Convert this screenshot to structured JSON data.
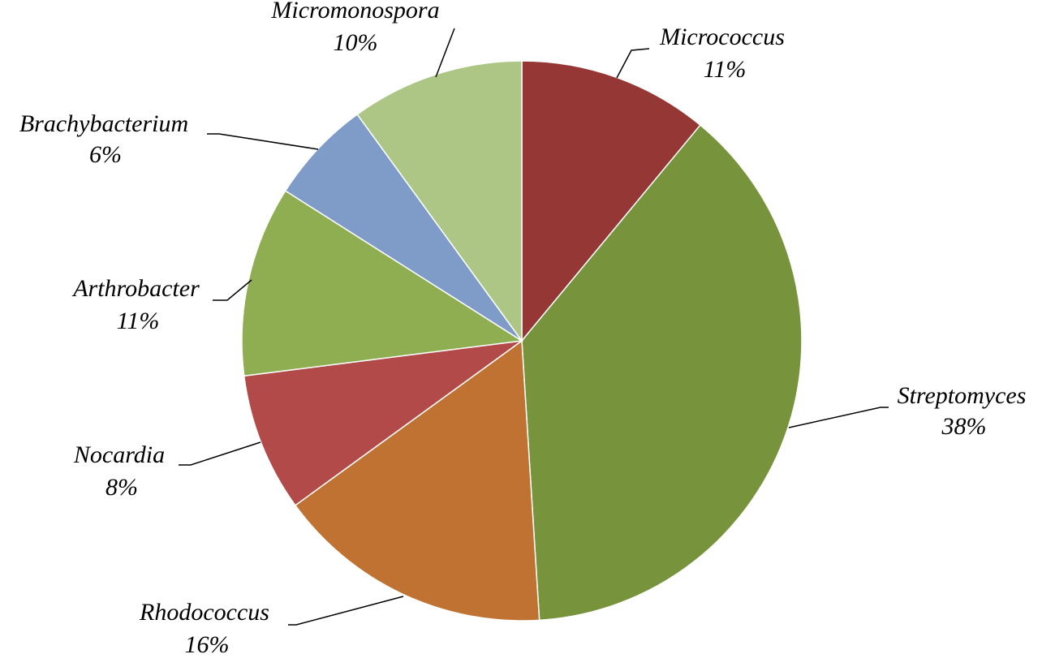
{
  "chart_data": {
    "type": "pie",
    "categories": [
      "Micrococcus",
      "Streptomyces",
      "Rhodococcus",
      "Nocardia",
      "Arthrobacter",
      "Brachybacterium",
      "Micromonospora"
    ],
    "values": [
      11,
      38,
      16,
      8,
      11,
      6,
      10
    ],
    "value_labels": [
      "11%",
      "38%",
      "16%",
      "8%",
      "11%",
      "6%",
      "10%"
    ],
    "colors": [
      "#953735",
      "#77933c",
      "#c07232",
      "#b14a48",
      "#8fae52",
      "#7f9cc9",
      "#adc686"
    ]
  }
}
